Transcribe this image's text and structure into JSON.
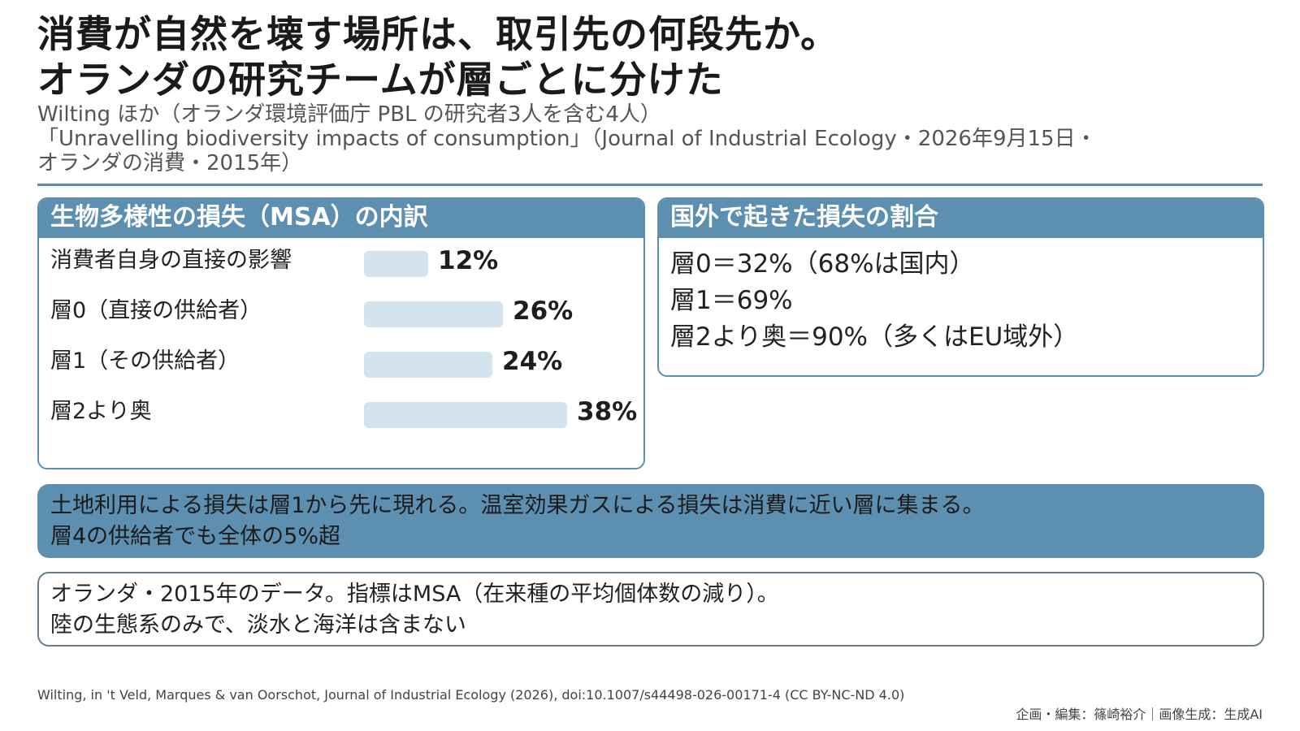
{
  "header": {
    "title_lines": [
      "消費が自然を壊す場所は、取引先の何段先か。",
      "オランダの研究チームが層ごとに分けた"
    ],
    "subtitle_lines": [
      "Wilting ほか（オランダ環境評価庁 PBL の研究者3人を含む4人）",
      "「Unravelling biodiversity impacts of consumption」（Journal of Industrial Ecology・2026年9月15日・",
      "オランダの消費・2015年）"
    ]
  },
  "breakdown_panel": {
    "title": "生物多様性の損失（MSA）の内訳"
  },
  "chart_data": {
    "type": "bar",
    "orientation": "horizontal",
    "title": "生物多様性の損失（MSA）の内訳",
    "categories": [
      "消費者自身の直接の影響",
      "層0（直接の供給者）",
      "層1（その供給者）",
      "層2より奥"
    ],
    "values": [
      12,
      26,
      24,
      38
    ],
    "value_labels": [
      "12%",
      "26%",
      "24%",
      "38%"
    ],
    "unit": "%",
    "xlabel": "",
    "ylabel": "",
    "grid": false,
    "legend": "none",
    "bar_color": "#d3e4ef"
  },
  "overseas_panel": {
    "title": "国外で起きた損失の割合",
    "items": [
      "層0＝32%（68%は国内）",
      "層1＝69%",
      "層2より奥＝90%（多くはEU域外）"
    ]
  },
  "callout": {
    "lines": [
      "土地利用による損失は層1から先に現れる。温室効果ガスによる損失は消費に近い層に集まる。",
      "層4の供給者でも全体の5%超"
    ]
  },
  "note": {
    "lines": [
      "オランダ・2015年のデータ。指標はMSA（在来種の平均個体数の減り）。",
      "陸の生態系のみで、淡水と海洋は含まない"
    ]
  },
  "footer": {
    "citation": "Wilting, in 't Veld, Marques & van Oorschot, Journal of Industrial Ecology (2026), doi:10.1007/s44498-026-00171-4 (CC BY-NC-ND 4.0)",
    "credit": "企画・編集：篠崎裕介｜画像生成：生成AI"
  },
  "colors": {
    "accent": "#5d8fb1",
    "bar": "#d3e4ef",
    "text": "#222222"
  }
}
